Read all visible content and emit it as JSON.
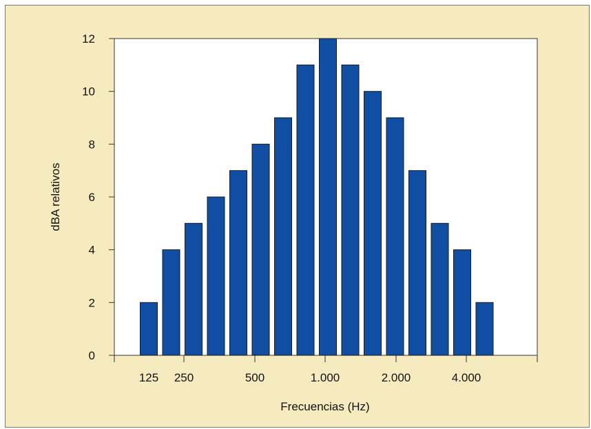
{
  "chart_data": {
    "type": "bar",
    "title": "",
    "xlabel": "Frecuencias (Hz)",
    "ylabel": "dBA relativos",
    "ylim": [
      0,
      12
    ],
    "yticks": [
      0,
      2,
      4,
      6,
      8,
      10,
      12
    ],
    "x_tick_labels": [
      "125",
      "250",
      "500",
      "1.000",
      "2.000",
      "4.000"
    ],
    "values": [
      2,
      4,
      5,
      6,
      7,
      8,
      9,
      11,
      12,
      11,
      10,
      9,
      7,
      5,
      4,
      2
    ],
    "bar_color": "#0f4ea3",
    "grid": false,
    "legend": "none"
  },
  "colors": {
    "background": "#f6ebbe",
    "plot_area": "#ffffff",
    "bar": "#0f4ea3"
  }
}
